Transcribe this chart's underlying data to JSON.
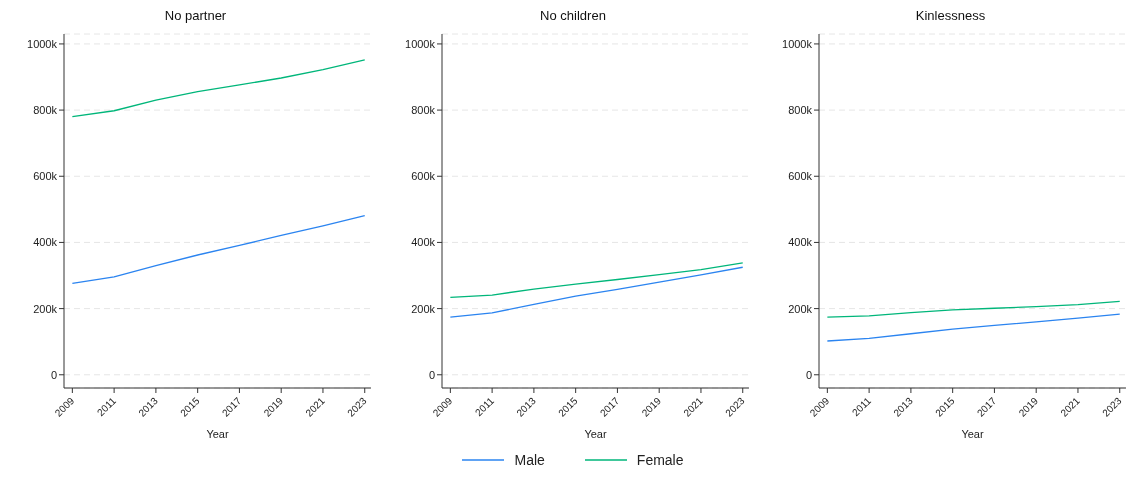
{
  "chart_data": [
    {
      "type": "line",
      "title": "No partner",
      "legend": "bottom",
      "xlabel": "Year",
      "x": [
        2009,
        2011,
        2013,
        2015,
        2017,
        2019,
        2021,
        2023
      ],
      "xlim": [
        2008.6,
        2023.3
      ],
      "xticks": [
        2009,
        2011,
        2013,
        2015,
        2017,
        2019,
        2021,
        2023
      ],
      "ylim": [
        -40000,
        1030000
      ],
      "yticks": [
        {
          "value": 0,
          "label": "0"
        },
        {
          "value": 200000,
          "label": "200k"
        },
        {
          "value": 400000,
          "label": "400k"
        },
        {
          "value": 600000,
          "label": "600k"
        },
        {
          "value": 800000,
          "label": "800k"
        },
        {
          "value": 1000000,
          "label": "1000k"
        }
      ],
      "grid": "y",
      "line_style": "solid",
      "marker": "none",
      "series": [
        {
          "name": "Male",
          "color": "#2b84f0",
          "values": [
            276000,
            296000,
            330000,
            362000,
            391000,
            421000,
            450000,
            481000
          ]
        },
        {
          "name": "Female",
          "color": "#00b67a",
          "values": [
            780000,
            798000,
            830000,
            856000,
            876000,
            897000,
            922000,
            952000
          ]
        }
      ]
    },
    {
      "type": "line",
      "title": "No children",
      "xlabel": "Year",
      "x": [
        2009,
        2011,
        2013,
        2015,
        2017,
        2019,
        2021,
        2023
      ],
      "xlim": [
        2008.6,
        2023.3
      ],
      "xticks": [
        2009,
        2011,
        2013,
        2015,
        2017,
        2019,
        2021,
        2023
      ],
      "ylim": [
        -40000,
        1030000
      ],
      "yticks": [
        {
          "value": 0,
          "label": "0"
        },
        {
          "value": 200000,
          "label": "200k"
        },
        {
          "value": 400000,
          "label": "400k"
        },
        {
          "value": 600000,
          "label": "600k"
        },
        {
          "value": 800000,
          "label": "800k"
        },
        {
          "value": 1000000,
          "label": "1000k"
        }
      ],
      "grid": "y",
      "line_style": "solid",
      "marker": "none",
      "series": [
        {
          "color": "#2b84f0",
          "values": [
            174000,
            187000,
            213000,
            238000,
            258000,
            280000,
            302000,
            325000
          ]
        },
        {
          "color": "#00b67a",
          "values": [
            234000,
            241000,
            259000,
            274000,
            288000,
            303000,
            318000,
            338000
          ]
        }
      ]
    },
    {
      "type": "line",
      "title": "Kinlessness",
      "xlabel": "Year",
      "x": [
        2009,
        2011,
        2013,
        2015,
        2017,
        2019,
        2021,
        2023
      ],
      "xlim": [
        2008.6,
        2023.3
      ],
      "xticks": [
        2009,
        2011,
        2013,
        2015,
        2017,
        2019,
        2021,
        2023
      ],
      "ylim": [
        -40000,
        1030000
      ],
      "yticks": [
        {
          "value": 0,
          "label": "0"
        },
        {
          "value": 200000,
          "label": "200k"
        },
        {
          "value": 400000,
          "label": "400k"
        },
        {
          "value": 600000,
          "label": "600k"
        },
        {
          "value": 800000,
          "label": "800k"
        },
        {
          "value": 1000000,
          "label": "1000k"
        }
      ],
      "grid": "y",
      "line_style": "solid",
      "marker": "none",
      "series": [
        {
          "color": "#2b84f0",
          "values": [
            102000,
            110000,
            124000,
            138000,
            149000,
            160000,
            171000,
            183000
          ]
        },
        {
          "color": "#00b67a",
          "values": [
            174000,
            178000,
            188000,
            196000,
            201000,
            206000,
            212000,
            222000
          ]
        }
      ]
    }
  ]
}
